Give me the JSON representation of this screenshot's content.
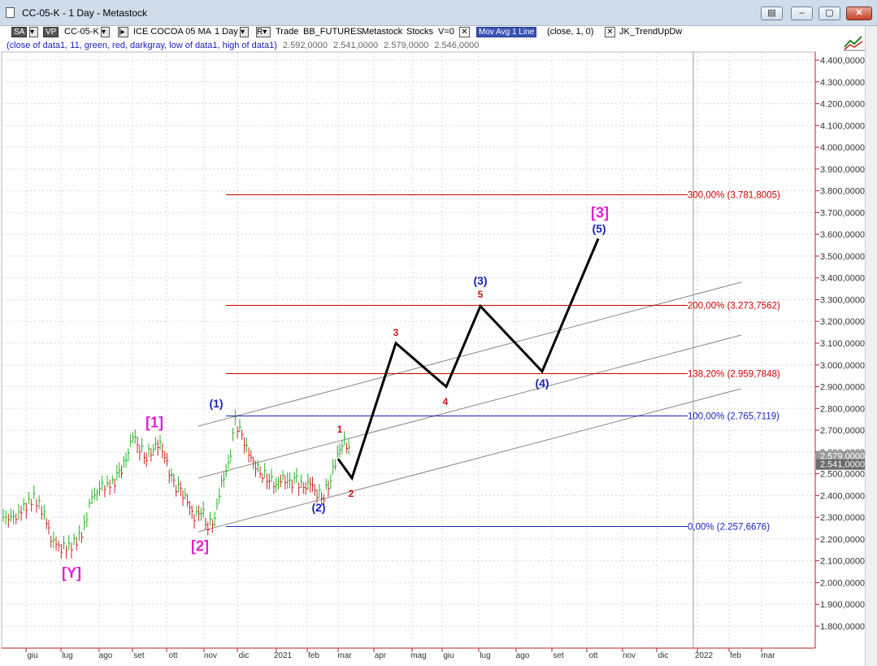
{
  "window": {
    "title": "CC-05-K - 1 Day - Metastock"
  },
  "toolbar": {
    "sa_label": "SA",
    "vp_label": "VP",
    "symbol": "CC-05-K",
    "instrument": "ICE COCOA 05 MA",
    "interval": "1 Day",
    "trade_label": "Trade",
    "feed": "BB_FUTURES",
    "source": "Metastock",
    "stocks": "Stocks",
    "v_label": "V=0",
    "mov_avg_label": "Mov Avg 1 Line",
    "mov_avg_params": "(close,  1,  0)",
    "indicator_name": "JK_TrendUpDw",
    "indicator_params": "(close of data1,  11,  green,  red,  darkgray,  low of data1,  high of data1)",
    "values": [
      "2.592,0000",
      "2.541,0000",
      "2.579,0000",
      "2.546,0000"
    ]
  },
  "chart_data": {
    "type": "line",
    "ylim": [
      1700,
      4500
    ],
    "y_ticks": [
      "4.400,0000",
      "4.300,0000",
      "4.200,0000",
      "4.100,0000",
      "4.000,0000",
      "3.900,0000",
      "3.800,0000",
      "3.700,0000",
      "3.600,0000",
      "3.500,0000",
      "3.400,0000",
      "3.300,0000",
      "3.200,0000",
      "3.100,0000",
      "3.000,0000",
      "2.900,0000",
      "2.800,0000",
      "2.700,0000",
      "2.600,0000",
      "2.500,0000",
      "2.400,0000",
      "2.300,0000",
      "2.200,0000",
      "2.100,0000",
      "2.000,0000",
      "1.900,0000",
      "1.800,0000"
    ],
    "y_tick_values": [
      4400,
      4300,
      4200,
      4100,
      4000,
      3900,
      3800,
      3700,
      3600,
      3500,
      3400,
      3300,
      3200,
      3100,
      3000,
      2900,
      2800,
      2700,
      2600,
      2500,
      2400,
      2300,
      2200,
      2100,
      2000,
      1900,
      1800
    ],
    "x_ticks": [
      "giu",
      "lug",
      "ago",
      "set",
      "ott",
      "nov",
      "dic",
      "2021",
      "feb",
      "mar",
      "apr",
      "mag",
      "giu",
      "lug",
      "ago",
      "set",
      "ott",
      "nov",
      "dic",
      "2022",
      "feb",
      "mar"
    ],
    "current_price_labels": [
      "2.579,0000",
      "2.541,0000"
    ],
    "fib_levels": [
      {
        "label": "300,00% (3.781,8005)",
        "value": 3781.8005,
        "color": "#cc0000"
      },
      {
        "label": "200,00% (3.273,7562)",
        "value": 3273.7562,
        "color": "#cc0000"
      },
      {
        "label": "138,20% (2.959,7848)",
        "value": 2959.7848,
        "color": "#cc0000"
      },
      {
        "label": "100,00% (2.765,7119)",
        "value": 2765.7119,
        "color": "#1a23b8"
      },
      {
        "label": "0,00% (2.257,6676)",
        "value": 2257.6676,
        "color": "#1a23b8"
      }
    ],
    "price_series": [
      {
        "x": 0,
        "y": 2300
      },
      {
        "x": 3,
        "y": 2290
      },
      {
        "x": 6,
        "y": 2340
      },
      {
        "x": 9,
        "y": 2390
      },
      {
        "x": 12,
        "y": 2320
      },
      {
        "x": 14,
        "y": 2200
      },
      {
        "x": 17,
        "y": 2160
      },
      {
        "x": 20,
        "y": 2170
      },
      {
        "x": 23,
        "y": 2220
      },
      {
        "x": 26,
        "y": 2390
      },
      {
        "x": 29,
        "y": 2440
      },
      {
        "x": 32,
        "y": 2450
      },
      {
        "x": 34,
        "y": 2500
      },
      {
        "x": 36,
        "y": 2560
      },
      {
        "x": 38,
        "y": 2680
      },
      {
        "x": 40,
        "y": 2620
      },
      {
        "x": 42,
        "y": 2580
      },
      {
        "x": 44,
        "y": 2620
      },
      {
        "x": 46,
        "y": 2640
      },
      {
        "x": 48,
        "y": 2540
      },
      {
        "x": 50,
        "y": 2450
      },
      {
        "x": 52,
        "y": 2420
      },
      {
        "x": 54,
        "y": 2370
      },
      {
        "x": 56,
        "y": 2300
      },
      {
        "x": 58,
        "y": 2340
      },
      {
        "x": 60,
        "y": 2260
      },
      {
        "x": 62,
        "y": 2300
      },
      {
        "x": 64,
        "y": 2460
      },
      {
        "x": 66,
        "y": 2530
      },
      {
        "x": 68,
        "y": 2740
      },
      {
        "x": 70,
        "y": 2670
      },
      {
        "x": 72,
        "y": 2590
      },
      {
        "x": 74,
        "y": 2540
      },
      {
        "x": 76,
        "y": 2500
      },
      {
        "x": 78,
        "y": 2480
      },
      {
        "x": 80,
        "y": 2450
      },
      {
        "x": 82,
        "y": 2480
      },
      {
        "x": 84,
        "y": 2450
      },
      {
        "x": 86,
        "y": 2470
      },
      {
        "x": 88,
        "y": 2430
      },
      {
        "x": 90,
        "y": 2460
      },
      {
        "x": 92,
        "y": 2410
      },
      {
        "x": 94,
        "y": 2400
      },
      {
        "x": 96,
        "y": 2480
      },
      {
        "x": 98,
        "y": 2590
      },
      {
        "x": 100,
        "y": 2650
      },
      {
        "x": 102,
        "y": 2590
      }
    ],
    "projection_path": [
      {
        "label": "1",
        "value": 2680
      },
      {
        "label": "2",
        "value": 2480
      },
      {
        "label": "3",
        "value": 3100
      },
      {
        "label": "4",
        "value": 2900
      },
      {
        "label": "5",
        "value": 3270
      },
      {
        "label": "(4)",
        "value": 2970
      },
      {
        "label": "(5)",
        "value": 3580
      }
    ],
    "wave_labels": [
      {
        "text": "[Y]",
        "color": "#e020d0"
      },
      {
        "text": "[1]",
        "color": "#e020d0"
      },
      {
        "text": "[2]",
        "color": "#e020d0"
      },
      {
        "text": "(1)",
        "color": "#1a23b8"
      },
      {
        "text": "(2)",
        "color": "#1a23b8"
      },
      {
        "text": "1",
        "color": "#cc1111"
      },
      {
        "text": "2",
        "color": "#cc1111"
      },
      {
        "text": "3",
        "color": "#cc1111"
      },
      {
        "text": "4",
        "color": "#cc1111"
      },
      {
        "text": "5",
        "color": "#cc1111"
      },
      {
        "text": "(3)",
        "color": "#1a23b8"
      },
      {
        "text": "(4)",
        "color": "#1a23b8"
      },
      {
        "text": "(5)",
        "color": "#1a23b8"
      },
      {
        "text": "[3]",
        "color": "#e020d0"
      }
    ],
    "grid": true
  }
}
